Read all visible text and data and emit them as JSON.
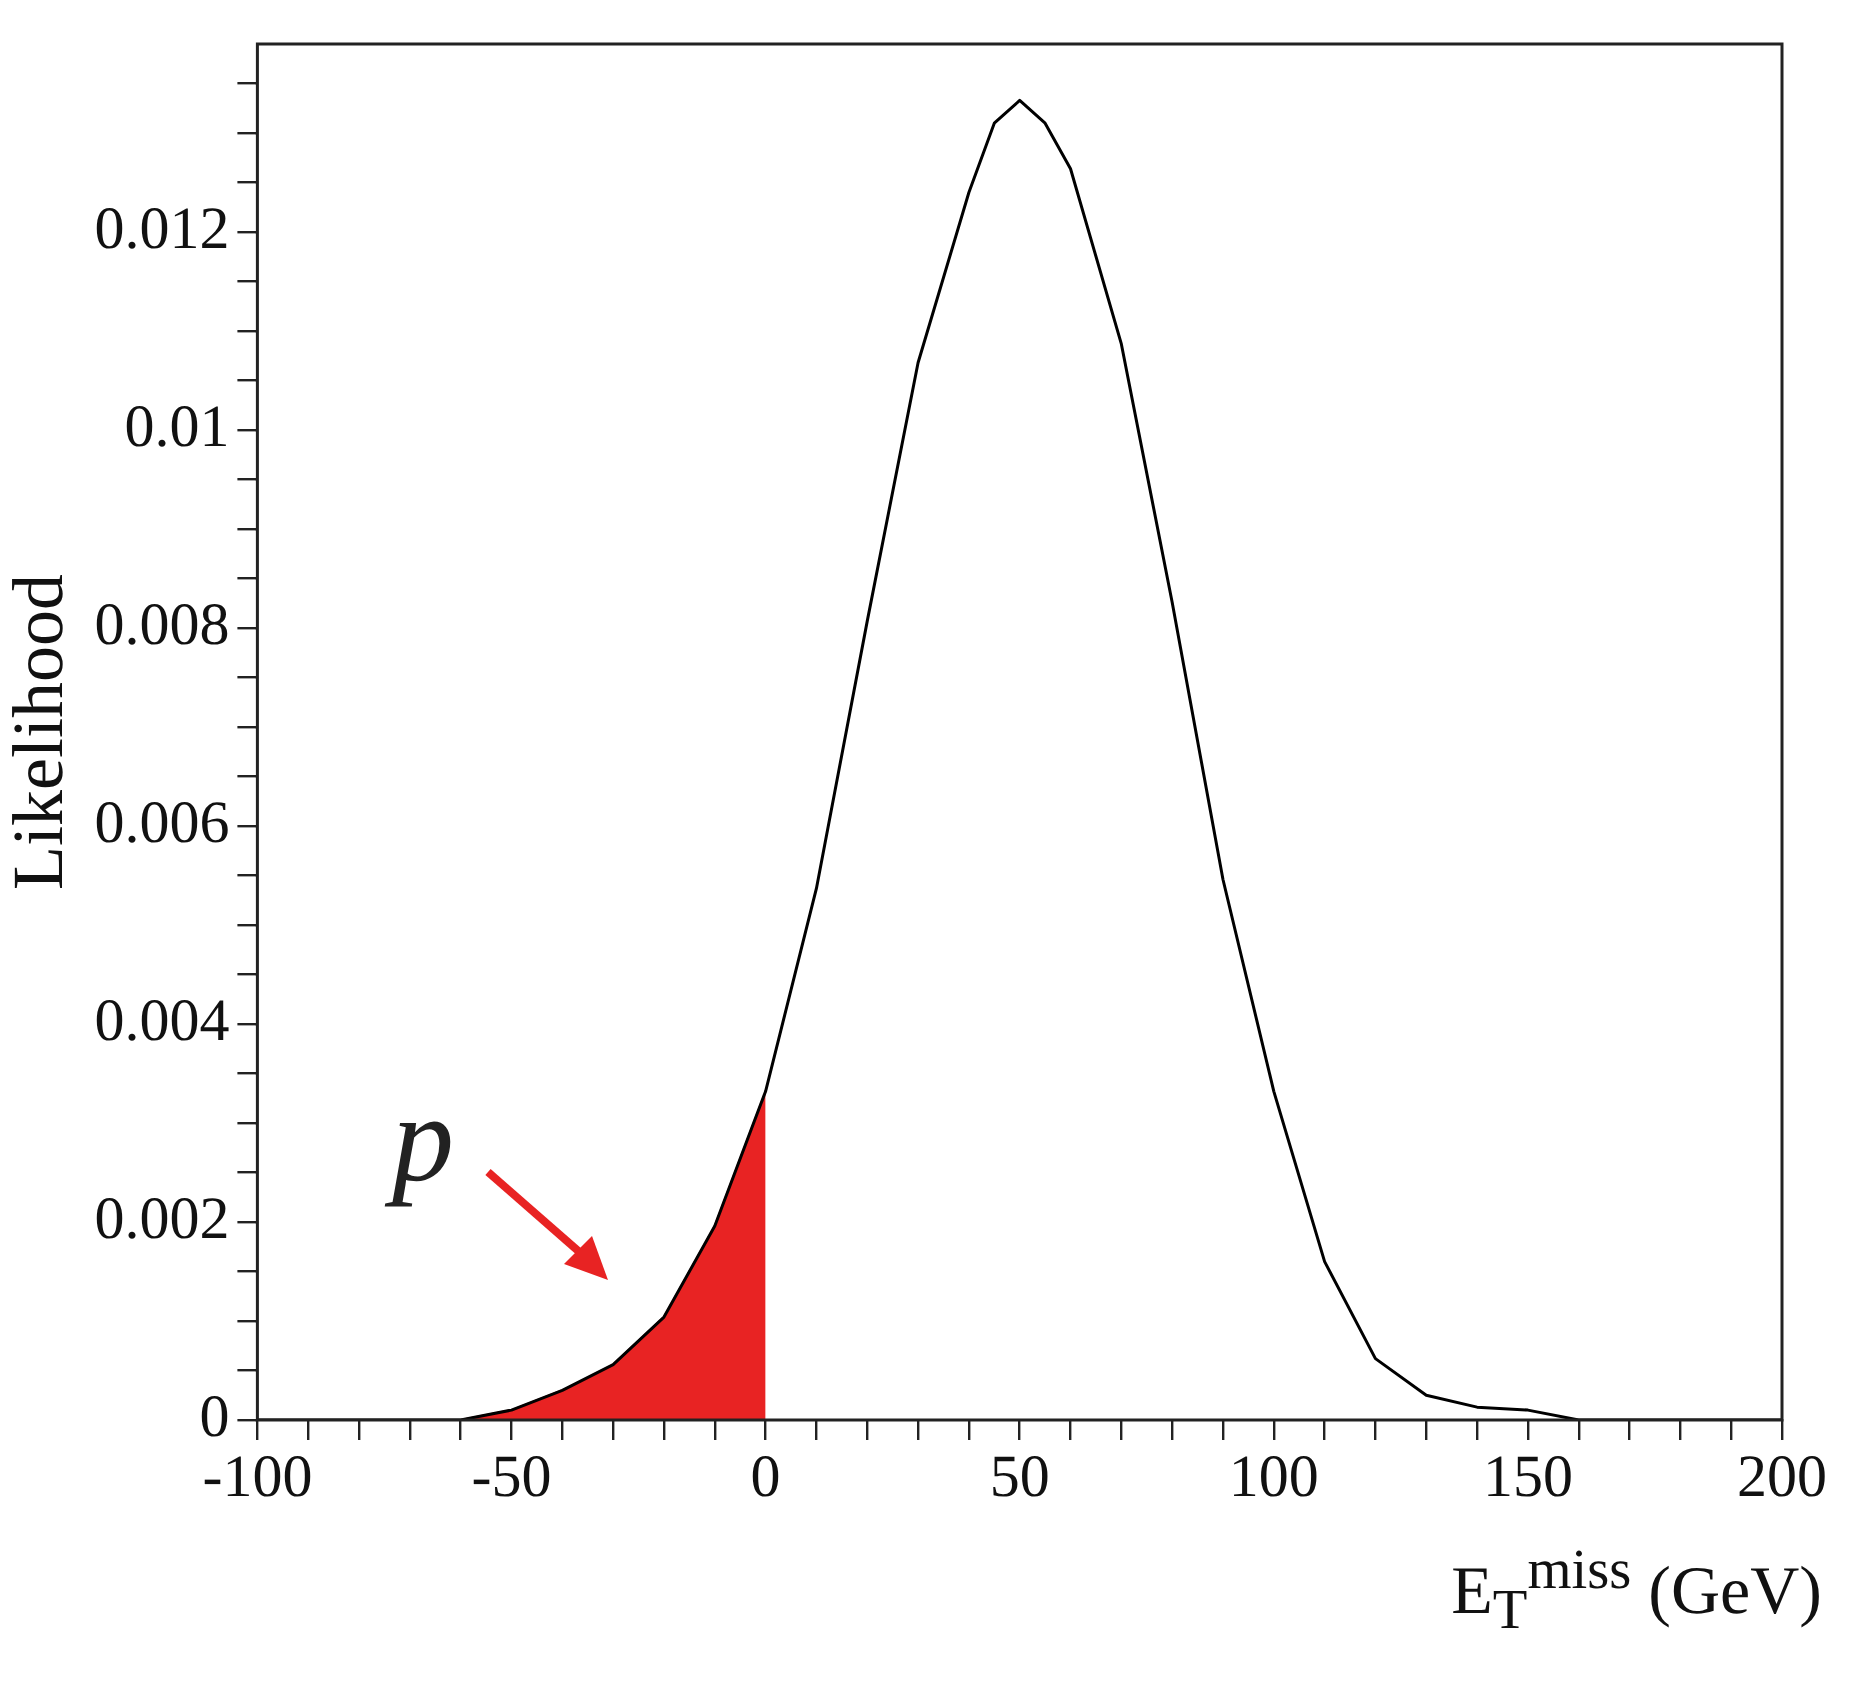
{
  "chart_data": {
    "type": "line",
    "xlabel": "E$_{T}$$^{miss}$ (GeV)",
    "ylabel": "Likelihood",
    "annotations": [
      "p"
    ],
    "series": [
      {
        "type": "area",
        "color": "#e82323",
        "x": [
          -100,
          -90,
          -80,
          -70,
          -60,
          -50,
          -40,
          -30,
          -20,
          -10,
          0
        ],
        "values": [
          0,
          0,
          0,
          0,
          0,
          0.0001,
          0.0003,
          0.00056,
          0.00104,
          0.00196,
          0.00332
        ]
      },
      {
        "color": "#000000",
        "x": [
          -100,
          -90,
          -80,
          -70,
          -60,
          -50,
          -40,
          -30,
          -20,
          -10,
          0,
          10,
          20,
          30,
          40,
          45,
          50,
          55,
          60,
          70,
          80,
          90,
          100,
          110,
          120,
          130,
          140,
          150,
          160,
          170,
          180,
          190,
          200
        ],
        "values": [
          0,
          0,
          0,
          0,
          0,
          0.0001,
          0.0003,
          0.00056,
          0.00104,
          0.00196,
          0.00332,
          0.00537,
          0.00807,
          0.01068,
          0.0124,
          0.0131,
          0.01333,
          0.0131,
          0.01264,
          0.01087,
          0.00826,
          0.00546,
          0.00332,
          0.0016,
          0.00062,
          0.00025,
          0.00013,
          0.0001,
          0,
          0,
          0,
          0,
          0
        ]
      }
    ],
    "xlim": [
      -100,
      200
    ],
    "xticks": [
      -100,
      {
        "value": -90,
        "label": null
      },
      {
        "value": -80,
        "label": null
      },
      {
        "value": -70,
        "label": null
      },
      {
        "value": -60,
        "label": null
      },
      -50,
      {
        "value": -40,
        "label": null
      },
      {
        "value": -30,
        "label": null
      },
      {
        "value": -20,
        "label": null
      },
      {
        "value": -10,
        "label": null
      },
      0,
      {
        "value": 10,
        "label": null
      },
      {
        "value": 20,
        "label": null
      },
      {
        "value": 30,
        "label": null
      },
      {
        "value": 40,
        "label": null
      },
      50,
      {
        "value": 60,
        "label": null
      },
      {
        "value": 70,
        "label": null
      },
      {
        "value": 80,
        "label": null
      },
      {
        "value": 90,
        "label": null
      },
      100,
      {
        "value": 110,
        "label": null
      },
      {
        "value": 120,
        "label": null
      },
      {
        "value": 130,
        "label": null
      },
      {
        "value": 140,
        "label": null
      },
      150,
      {
        "value": 160,
        "label": null
      },
      {
        "value": 170,
        "label": null
      },
      {
        "value": 180,
        "label": null
      },
      {
        "value": 190,
        "label": null
      },
      200
    ],
    "ylim": [
      0,
      0.0139
    ],
    "yticks": [
      0,
      {
        "value": 0.0005,
        "label": null
      },
      {
        "value": 0.001,
        "label": null
      },
      {
        "value": 0.0015,
        "label": null
      },
      0.002,
      {
        "value": 0.0025,
        "label": null
      },
      {
        "value": 0.003,
        "label": null
      },
      {
        "value": 0.0035,
        "label": null
      },
      0.004,
      {
        "value": 0.0045,
        "label": null
      },
      {
        "value": 0.005,
        "label": null
      },
      {
        "value": 0.0055,
        "label": null
      },
      0.006,
      {
        "value": 0.0065,
        "label": null
      },
      {
        "value": 0.007,
        "label": null
      },
      {
        "value": 0.0075,
        "label": null
      },
      0.008,
      {
        "value": 0.0085,
        "label": null
      },
      {
        "value": 0.009,
        "label": null
      },
      {
        "value": 0.0095,
        "label": null
      },
      0.01,
      {
        "value": 0.0105,
        "label": null
      },
      {
        "value": 0.011,
        "label": null
      },
      {
        "value": 0.0115,
        "label": null
      },
      0.012,
      {
        "value": 0.0125,
        "label": null
      },
      {
        "value": 0.013,
        "label": null
      },
      {
        "value": 0.0135,
        "label": null
      }
    ],
    "grid": false,
    "legend": false,
    "marker": "none",
    "line_style": "solid"
  }
}
